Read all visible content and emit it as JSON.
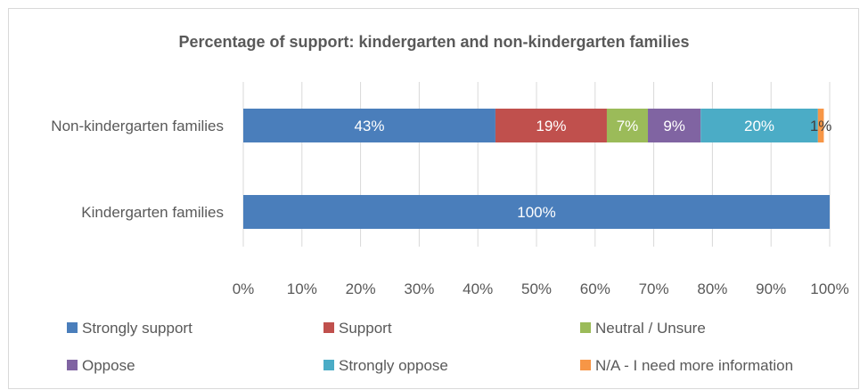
{
  "chart_data": {
    "type": "bar",
    "orientation": "horizontal",
    "stacked": true,
    "title": "Percentage of support: kindergarten and non-kindergarten families",
    "categories": [
      "Non-kindergarten families",
      "Kindergarten families"
    ],
    "series": [
      {
        "name": "Strongly support",
        "color": "#4a7ebb",
        "values": [
          43,
          100
        ],
        "labels": [
          "43%",
          "100%"
        ]
      },
      {
        "name": "Support",
        "color": "#c0504d",
        "values": [
          19,
          0
        ],
        "labels": [
          "19%",
          ""
        ]
      },
      {
        "name": "Neutral /  Unsure",
        "color": "#9bbb59",
        "values": [
          7,
          0
        ],
        "labels": [
          "7%",
          ""
        ]
      },
      {
        "name": "Oppose",
        "color": "#8064a2",
        "values": [
          9,
          0
        ],
        "labels": [
          "9%",
          ""
        ]
      },
      {
        "name": "Strongly oppose",
        "color": "#4bacc6",
        "values": [
          20,
          0
        ],
        "labels": [
          "20%",
          ""
        ]
      },
      {
        "name": "N/A - I need more information",
        "color": "#f79646",
        "values": [
          1,
          0
        ],
        "labels": [
          "1%",
          ""
        ]
      }
    ],
    "xlim": [
      0,
      100
    ],
    "xticks": [
      "0%",
      "10%",
      "20%",
      "30%",
      "40%",
      "50%",
      "60%",
      "70%",
      "80%",
      "90%",
      "100%"
    ],
    "grid": true,
    "legend_position": "bottom"
  }
}
